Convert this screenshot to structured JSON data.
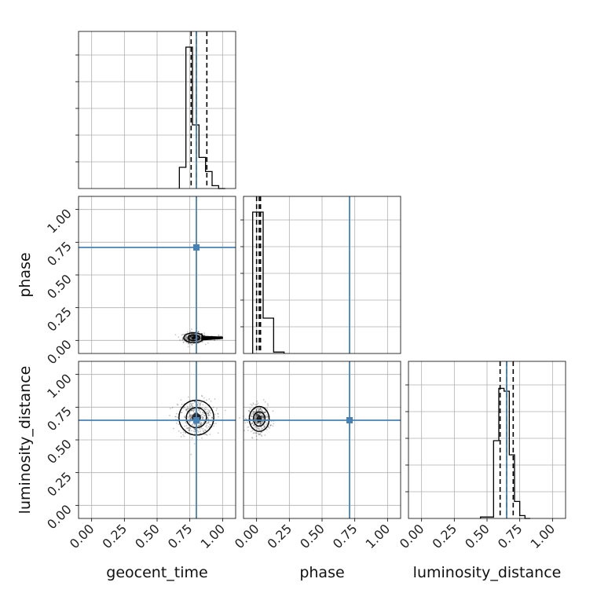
{
  "chart_data": {
    "type": "corner",
    "parameters": [
      "geocent_time",
      "phase",
      "luminosity_distance"
    ],
    "axis_labels": {
      "x": [
        "geocent_time",
        "phase",
        "luminosity_distance"
      ],
      "y": [
        "",
        "phase",
        "luminosity_distance"
      ]
    },
    "xlim": [
      -0.1,
      1.1
    ],
    "ylim": [
      -0.1,
      1.1
    ],
    "ticks": [
      0.0,
      0.25,
      0.5,
      0.75,
      1.0
    ],
    "tick_labels": [
      "0.00",
      "0.25",
      "0.50",
      "0.75",
      "1.00"
    ],
    "grid": true,
    "truths": [
      0.8,
      0.71,
      0.65
    ],
    "truth_color": "#4682b4",
    "histogram_color": "#000000",
    "histograms": [
      {
        "parameter": "geocent_time",
        "bin_edges": [
          0.67,
          0.72,
          0.77,
          0.82,
          0.87,
          0.92,
          0.97,
          1.02
        ],
        "counts": [
          0.15,
          1.0,
          0.45,
          0.22,
          0.12,
          0.02,
          0.0
        ],
        "quantiles": [
          0.76,
          0.8,
          0.88
        ]
      },
      {
        "parameter": "phase",
        "bin_edges": [
          -0.03,
          0.05,
          0.13,
          0.21
        ],
        "counts": [
          1.0,
          0.25,
          0.01
        ],
        "quantiles": [
          0.0,
          0.02,
          0.03
        ]
      },
      {
        "parameter": "luminosity_distance",
        "bin_edges": [
          0.45,
          0.55,
          0.59,
          0.63,
          0.67,
          0.71,
          0.75,
          0.79,
          0.83
        ],
        "counts": [
          0.01,
          0.55,
          0.92,
          0.9,
          0.45,
          0.12,
          0.02,
          0.0
        ],
        "quantiles": [
          0.6,
          0.65,
          0.7
        ]
      }
    ],
    "scatter_panels": [
      {
        "x_param": "geocent_time",
        "y_param": "phase",
        "center": [
          0.78,
          0.02
        ],
        "spread": [
          0.04,
          0.02
        ],
        "tail": [
          0.78,
          1.0,
          0.02
        ]
      },
      {
        "x_param": "geocent_time",
        "y_param": "luminosity_distance",
        "center": [
          0.8,
          0.67
        ],
        "spread": [
          0.07,
          0.07
        ]
      },
      {
        "x_param": "phase",
        "y_param": "luminosity_distance",
        "center": [
          0.02,
          0.66
        ],
        "spread": [
          0.04,
          0.05
        ]
      }
    ]
  }
}
